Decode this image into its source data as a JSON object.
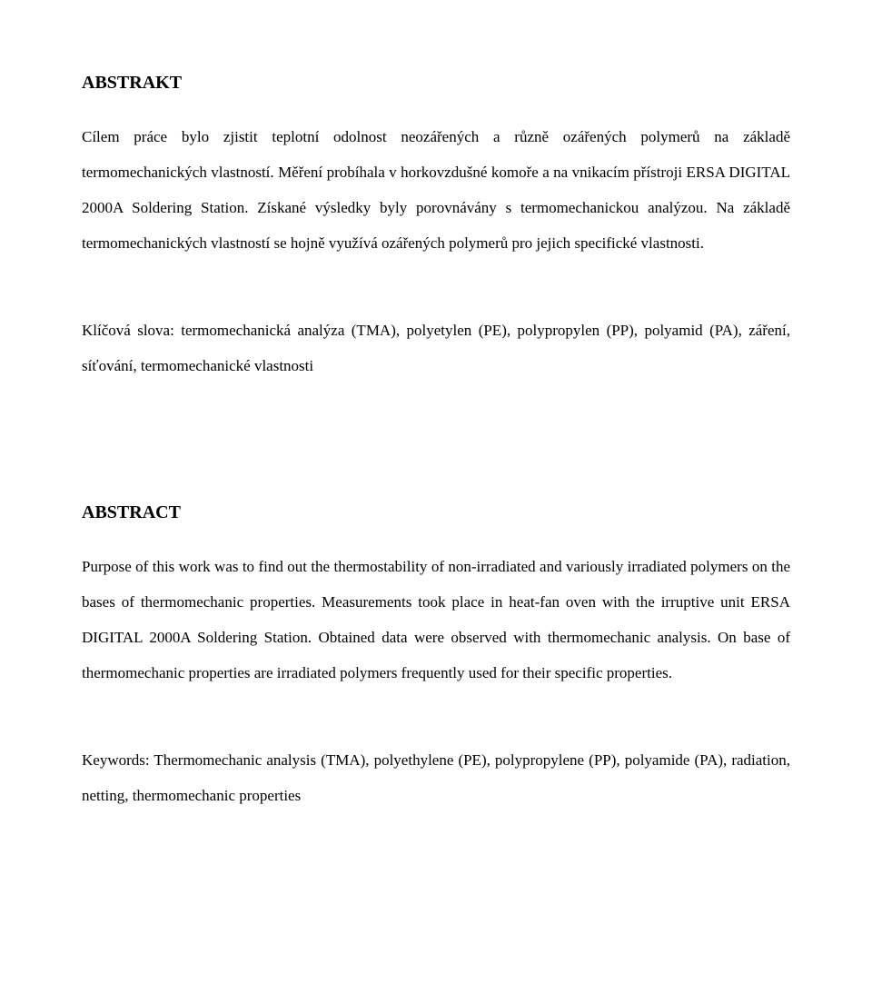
{
  "doc": {
    "background_color": "#ffffff",
    "text_color": "#000000",
    "font_family": "Times New Roman",
    "heading_fontsize": 20,
    "body_fontsize": 17,
    "line_height": 2.3,
    "text_align": "justify"
  },
  "abstrakt": {
    "heading": "ABSTRAKT",
    "body": "Cílem práce bylo zjistit teplotní odolnost neozářených a různě ozářených polymerů na základě termomechanických vlastností. Měření probíhala v horkovzdušné komoře a na vnikacím přístroji ERSA DIGITAL 2000A Soldering Station. Získané výsledky byly porovnávány s termomechanickou analýzou. Na základě termomechanických vlastností se hojně využívá ozářených polymerů pro jejich specifické vlastnosti.",
    "keywords": "Klíčová slova: termomechanická analýza (TMA), polyetylen (PE), polypropylen (PP), polyamid (PA), záření, síťování, termomechanické vlastnosti"
  },
  "abstract_en": {
    "heading": "ABSTRACT",
    "body": "Purpose of this work was to find out the thermostability of non-irradiated and variously irradiated polymers on the bases of thermomechanic properties. Measurements took place in heat-fan oven with the irruptive unit ERSA DIGITAL 2000A Soldering Station. Obtained data were observed with thermomechanic analysis. On base of thermomechanic properties are irradiated polymers frequently used for their specific properties.",
    "keywords": "Keywords: Thermomechanic analysis (TMA), polyethylene (PE), polypropylene (PP), polyamide (PA), radiation, netting, thermomechanic properties"
  }
}
